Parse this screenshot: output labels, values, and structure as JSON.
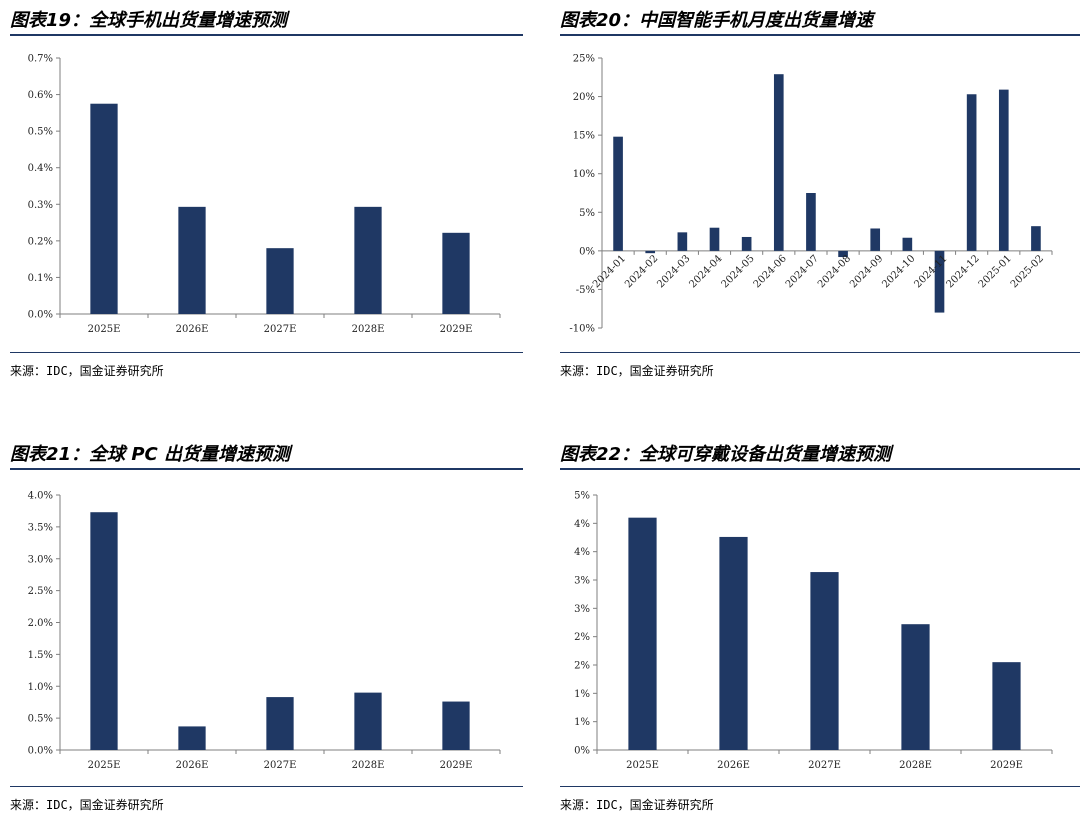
{
  "colors": {
    "bar": "#1f3864",
    "rule": "#1f3864",
    "axis": "#7f7f7f"
  },
  "panels": [
    {
      "title": "图表19：全球手机出货量增速预测",
      "source": "来源：IDC，国金证券研究所",
      "chart_data": {
        "type": "bar",
        "categories": [
          "2025E",
          "2026E",
          "2027E",
          "2028E",
          "2029E"
        ],
        "values": [
          0.575,
          0.293,
          0.18,
          0.293,
          0.222
        ],
        "unit": "%",
        "ylim": [
          0,
          0.7
        ],
        "yticks": [
          0,
          0.1,
          0.2,
          0.3,
          0.4,
          0.5,
          0.6,
          0.7
        ],
        "ytick_labels": [
          "0.0%",
          "0.1%",
          "0.2%",
          "0.3%",
          "0.4%",
          "0.5%",
          "0.6%",
          "0.7%"
        ],
        "xlabel": "",
        "ylabel": "",
        "grid": false,
        "legend": "none"
      }
    },
    {
      "title": "图表20：中国智能手机月度出货量增速",
      "source": "来源：IDC，国金证券研究所",
      "chart_data": {
        "type": "bar",
        "categories": [
          "2024-01",
          "2024-02",
          "2024-03",
          "2024-04",
          "2024-05",
          "2024-06",
          "2024-07",
          "2024-08",
          "2024-09",
          "2024-10",
          "2024-11",
          "2024-12",
          "2025-01",
          "2025-02"
        ],
        "values": [
          14.8,
          -0.3,
          2.4,
          3.0,
          1.8,
          22.9,
          7.5,
          -0.8,
          2.9,
          1.7,
          -8.0,
          20.3,
          20.9,
          3.2
        ],
        "unit": "%",
        "ylim": [
          -10,
          25
        ],
        "yticks": [
          -10,
          -5,
          0,
          5,
          10,
          15,
          20,
          25
        ],
        "ytick_labels": [
          "-10%",
          "-5%",
          "0%",
          "5%",
          "10%",
          "15%",
          "20%",
          "25%"
        ],
        "xlabel": "",
        "ylabel": "",
        "grid": false,
        "legend": "none",
        "rotated_xticks": true
      }
    },
    {
      "title": "图表21：全球 PC 出货量增速预测",
      "source": "来源：IDC，国金证券研究所",
      "chart_data": {
        "type": "bar",
        "categories": [
          "2025E",
          "2026E",
          "2027E",
          "2028E",
          "2029E"
        ],
        "values": [
          3.73,
          0.37,
          0.83,
          0.9,
          0.76
        ],
        "unit": "%",
        "ylim": [
          0,
          4.0
        ],
        "yticks": [
          0,
          0.5,
          1.0,
          1.5,
          2.0,
          2.5,
          3.0,
          3.5,
          4.0
        ],
        "ytick_labels": [
          "0.0%",
          "0.5%",
          "1.0%",
          "1.5%",
          "2.0%",
          "2.5%",
          "3.0%",
          "3.5%",
          "4.0%"
        ],
        "xlabel": "",
        "ylabel": "",
        "grid": false,
        "legend": "none"
      }
    },
    {
      "title": "图表22：全球可穿戴设备出货量增速预测",
      "source": "来源：IDC，国金证券研究所",
      "chart_data": {
        "type": "bar",
        "categories": [
          "2025E",
          "2026E",
          "2027E",
          "2028E",
          "2029E"
        ],
        "values": [
          4.1,
          3.76,
          3.14,
          2.22,
          1.55
        ],
        "unit": "%",
        "ylim": [
          0,
          4.5
        ],
        "yticks": [
          0,
          0.5,
          1.0,
          1.5,
          2.0,
          2.5,
          3.0,
          3.5,
          4.0,
          4.5
        ],
        "ytick_labels": [
          "0%",
          "1%",
          "1%",
          "2%",
          "2%",
          "3%",
          "3%",
          "4%",
          "4%",
          "5%"
        ],
        "xlabel": "",
        "ylabel": "",
        "grid": false,
        "legend": "none"
      }
    }
  ]
}
